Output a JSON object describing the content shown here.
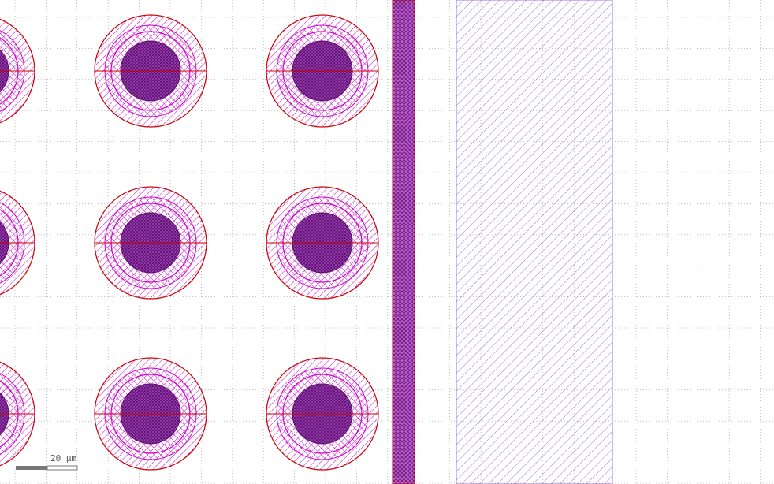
{
  "view": {
    "type": "layout-viewer-canvas",
    "grid": true,
    "background": "#ffffff",
    "grid_color": "#9a9a9a"
  },
  "layers": {
    "outline_red": "#cc0000",
    "magenta": "#cc00cc",
    "purple_fill": "#7a1a8a",
    "dark_purple": "#551166",
    "lavender": "#a070e0"
  },
  "scale_bar": {
    "label": "20 µm"
  },
  "structures": {
    "via_array": {
      "rows": 3,
      "columns": 3
    },
    "vertical_strip": "cross-hatched",
    "wide_region": "diagonal-hatched"
  }
}
